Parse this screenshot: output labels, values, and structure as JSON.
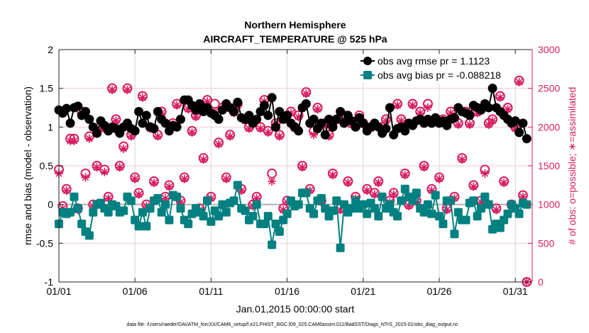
{
  "chart_data": {
    "type": "line",
    "title": "Northern Hemisphere",
    "subtitle": "AIRCRAFT_TEMPERATURE @ 525 hPa",
    "xlabel": "Jan.01,2015 00:00:00 start",
    "ylabel": "rmse and bias (model - observation)",
    "ylabel_right": "# of obs: o=possible; ∗=assimilated",
    "footer": "data file: /Users/raeder/DAI/ATM_forcXX/CAM6_setup/f.e21.FHIST_BGC.f09_025.CAM6assim.011/BadSST/Diags_NTrS_2015-01/obs_diag_output.nc",
    "x_start": "2015-01-01 00:00",
    "x_interval": "6 hours",
    "xlim": [
      "2015-01-01 00:00",
      "2015-02-01 02:00"
    ],
    "x_ticks": [
      "01/01",
      "01/06",
      "01/11",
      "01/16",
      "01/21",
      "01/26",
      "01/31"
    ],
    "ylim": [
      -1,
      2
    ],
    "y_ticks": [
      "-1",
      "-0.5",
      "0",
      "0.5",
      "1",
      "1.5",
      "2"
    ],
    "ylim_right": [
      0,
      3000
    ],
    "y_ticks_right": [
      "0",
      "500",
      "1000",
      "1500",
      "2000",
      "2500",
      "3000"
    ],
    "grid": true,
    "legend_placement": "top-right",
    "colors": {
      "rmse": "#000000",
      "bias": "#008080",
      "counts": "#d81b60",
      "zero_line": "#b0b0b0"
    },
    "series": [
      {
        "name": "obs avg rmse pr = 1.1123",
        "axis": "left",
        "marker": "filled-circle",
        "values": [
          1.22,
          1.18,
          1.24,
          1.05,
          1.25,
          1.27,
          1.15,
          1.2,
          1.1,
          1.0,
          0.92,
          1.08,
          1.02,
          0.95,
          1.0,
          0.98,
          0.92,
          1.0,
          1.05,
          0.98,
          0.95,
          1.2,
          1.05,
          1.15,
          1.0,
          0.98,
          1.2,
          1.1,
          1.05,
          0.95,
          1.02,
          1.0,
          1.1,
          1.35,
          1.35,
          1.28,
          1.22,
          1.3,
          1.2,
          1.25,
          1.18,
          1.15,
          1.1,
          1.22,
          1.3,
          1.25,
          1.2,
          1.32,
          1.12,
          1.1,
          1.15,
          1.05,
          1.1,
          1.2,
          1.28,
          1.15,
          1.38,
          1.0,
          1.2,
          1.1,
          1.15,
          1.05,
          1.0,
          0.95,
          1.25,
          1.3,
          1.05,
          1.1,
          0.98,
          1.05,
          0.9,
          1.1,
          1.0,
          1.1,
          1.2,
          1.05,
          1.15,
          1.08,
          1.0,
          1.12,
          1.05,
          0.95,
          1.0,
          1.05,
          1.0,
          0.92,
          0.98,
          1.25,
          0.9,
          0.98,
          1.0,
          0.95,
          1.05,
          1.02,
          1.08,
          1.1,
          1.05,
          1.1,
          1.05,
          1.12,
          1.05,
          1.08,
          1.02,
          1.1,
          1.12,
          1.25,
          1.2,
          1.18,
          1.15,
          1.28,
          1.25,
          1.22,
          1.3,
          1.25,
          1.5,
          1.25,
          1.2,
          1.15,
          1.1,
          1.05,
          1.08,
          0.93,
          1.05,
          0.85
        ]
      },
      {
        "name": "obs avg bias pr = -0.088218",
        "axis": "left",
        "marker": "filled-square",
        "values": [
          -0.25,
          -0.1,
          -0.12,
          -0.1,
          0.1,
          -0.05,
          -0.25,
          -0.35,
          -0.4,
          -0.1,
          0.0,
          0.02,
          -0.05,
          -0.1,
          0.0,
          -0.02,
          -0.1,
          -0.08,
          0.1,
          0.05,
          -0.2,
          -0.28,
          -0.1,
          -0.28,
          -0.05,
          0.05,
          0.08,
          -0.1,
          0.0,
          -0.2,
          0.12,
          0.1,
          -0.05,
          -0.2,
          -0.25,
          -0.12,
          -0.05,
          -0.1,
          -0.15,
          0.05,
          -0.22,
          -0.08,
          -0.15,
          0.0,
          -0.1,
          0.02,
          0.05,
          0.25,
          -0.05,
          -0.08,
          -0.2,
          -0.15,
          0.0,
          -0.25,
          -0.25,
          -0.15,
          -0.52,
          -0.25,
          -0.35,
          -0.2,
          -0.12,
          0.05,
          -0.02,
          0.0,
          0.15,
          0.15,
          -0.05,
          -0.12,
          0.05,
          0.08,
          -0.05,
          -0.15,
          -0.08,
          0.05,
          -0.56,
          0.0,
          -0.1,
          -0.05,
          0.05,
          -0.05,
          0.0,
          -0.12,
          0.02,
          -0.05,
          -0.15,
          0.1,
          -0.05,
          0.0,
          -0.1,
          -0.15,
          0.05,
          0.2,
          0.1,
          0.05,
          0.15,
          -0.05,
          -0.1,
          0.0,
          -0.12,
          0.12,
          -0.15,
          -0.25,
          0.05,
          0.05,
          -0.38,
          -0.1,
          -0.2,
          -0.2,
          0.02,
          0.05,
          -0.15,
          -0.05,
          0.1,
          0.0,
          -0.32,
          -0.25,
          -0.3,
          -0.2,
          -0.12,
          0.0,
          -0.05,
          -0.12,
          0.02,
          0.0
        ]
      },
      {
        "name": "possible",
        "axis": "right",
        "marker": "open-circle",
        "values": [
          1450,
          980,
          1200,
          1850,
          1850,
          950,
          2200,
          1400,
          1880,
          1000,
          1500,
          2000,
          1450,
          1100,
          2500,
          2100,
          1500,
          1750,
          2500,
          1900,
          1350,
          1150,
          2400,
          1000,
          2000,
          1300,
          1900,
          2200,
          1100,
          1250,
          2050,
          2300,
          1050,
          1350,
          2250,
          1950,
          2150,
          950,
          1600,
          2350,
          1100,
          2300,
          1800,
          2250,
          1350,
          1900,
          2200,
          2300,
          1200,
          2100,
          2000,
          1000,
          1100,
          2000,
          2350,
          1950,
          1400,
          2050,
          1900,
          950,
          1050,
          2200,
          2000,
          2150,
          1500,
          2450,
          1200,
          1950,
          2250,
          1050,
          2050,
          1900,
          1400,
          2100,
          950,
          2150,
          1300,
          2050,
          1100,
          2150,
          2050,
          1200,
          2000,
          1150,
          1300,
          2000,
          2100,
          1050,
          1150,
          2300,
          2100,
          1400,
          1000,
          2300,
          1050,
          2200,
          1500,
          2300,
          1200,
          2100,
          1350,
          2100,
          950,
          2200,
          1100,
          2050,
          1600,
          2200,
          2050,
          1250,
          2200,
          1050,
          1450,
          2050,
          2100,
          950,
          2400,
          1300,
          2250,
          1000,
          2000,
          2600,
          1120,
          0
        ]
      },
      {
        "name": "assimilated",
        "axis": "right",
        "marker": "asterisk",
        "values": [
          1400,
          950,
          1180,
          1820,
          1820,
          930,
          2150,
          1350,
          1850,
          980,
          1480,
          1970,
          1420,
          1080,
          2480,
          2080,
          1480,
          1720,
          2480,
          1880,
          1330,
          1130,
          2380,
          980,
          1980,
          1280,
          1880,
          2180,
          1080,
          1230,
          2030,
          2280,
          1030,
          1330,
          2230,
          1930,
          2130,
          930,
          1580,
          2330,
          1080,
          2200,
          1780,
          2230,
          1330,
          1880,
          2180,
          2280,
          1180,
          2080,
          1980,
          980,
          1080,
          1980,
          2330,
          1930,
          1300,
          2030,
          1880,
          930,
          1030,
          2180,
          1980,
          2130,
          1480,
          2430,
          1180,
          1900,
          2230,
          1030,
          2030,
          1880,
          1380,
          2080,
          930,
          2100,
          1280,
          2030,
          1080,
          2130,
          2030,
          1180,
          1980,
          1130,
          1280,
          1980,
          2080,
          1030,
          1130,
          2280,
          2080,
          1380,
          980,
          2280,
          1030,
          2180,
          1480,
          2250,
          1180,
          2080,
          1330,
          2080,
          930,
          2180,
          1080,
          2030,
          1580,
          2180,
          2030,
          1230,
          2180,
          1030,
          1400,
          2030,
          2080,
          930,
          2380,
          1280,
          2230,
          980,
          1980,
          2580,
          1100,
          0
        ]
      }
    ]
  }
}
